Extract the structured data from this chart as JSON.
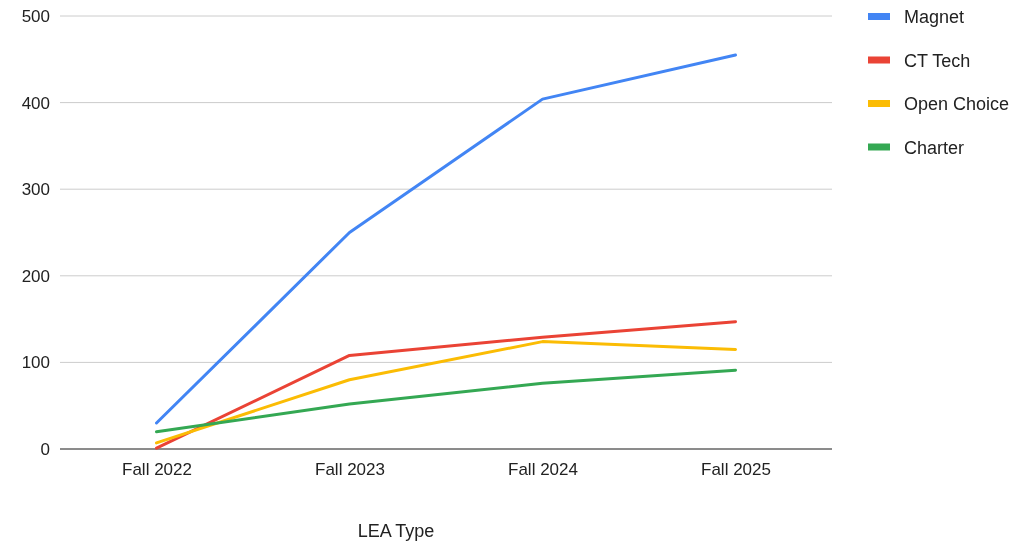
{
  "chart_data": {
    "type": "line",
    "xlabel": "LEA Type",
    "categories": [
      "Fall 2022",
      "Fall 2023",
      "Fall 2024",
      "Fall 2025"
    ],
    "series": [
      {
        "name": "Magnet",
        "color": "#4285f4",
        "values": [
          30,
          250,
          404,
          455
        ]
      },
      {
        "name": "CT Tech",
        "color": "#ea4335",
        "values": [
          1,
          108,
          129,
          147
        ]
      },
      {
        "name": "Open Choice",
        "color": "#fbbc04",
        "values": [
          7,
          80,
          124,
          115
        ]
      },
      {
        "name": "Charter",
        "color": "#34a853",
        "values": [
          20,
          52,
          76,
          91
        ]
      }
    ],
    "ylim": [
      0,
      500
    ],
    "yticks": [
      0,
      100,
      200,
      300,
      400,
      500
    ],
    "grid": "y",
    "legend": "top right",
    "marker": "none",
    "line_style": "solid"
  }
}
